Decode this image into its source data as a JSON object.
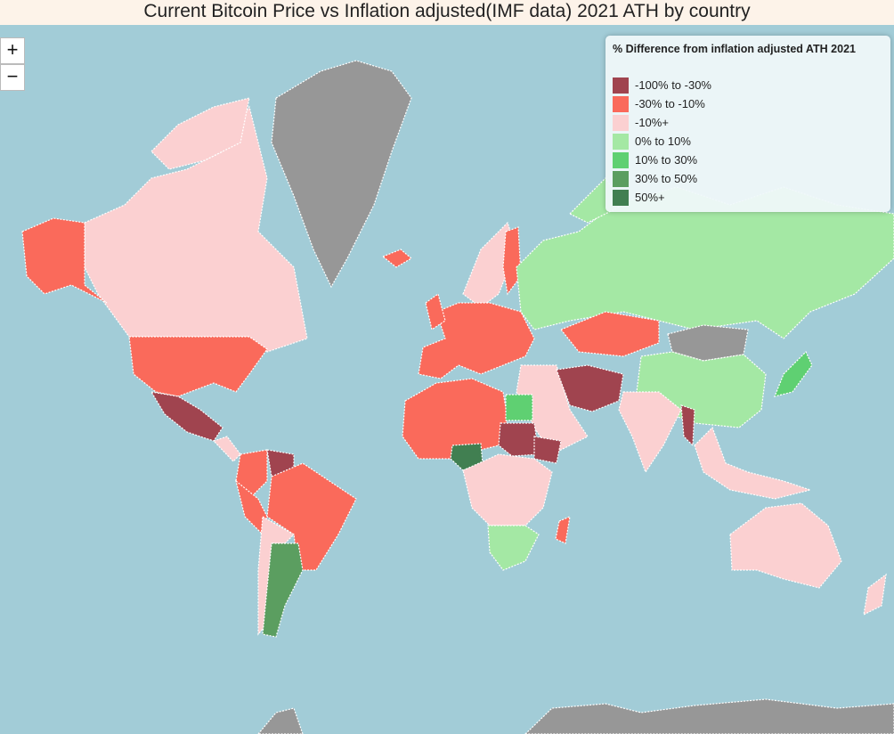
{
  "title": "Current Bitcoin Price vs Inflation adjusted(IMF data) 2021 ATH by country",
  "zoom": {
    "in": "+",
    "out": "−"
  },
  "legend": {
    "title": "% Difference from inflation adjusted ATH 2021",
    "items": [
      {
        "label": "-100% to -30%",
        "color": "#a0444f"
      },
      {
        "label": "-30% to -10%",
        "color": "#fa6a5b"
      },
      {
        "label": "-10%+",
        "color": "#fbd0d1"
      },
      {
        "label": "0% to 10%",
        "color": "#a4e8a4"
      },
      {
        "label": "10% to 30%",
        "color": "#5fd072"
      },
      {
        "label": "30% to 50%",
        "color": "#5b9e60"
      },
      {
        "label": "50%+",
        "color": "#417f51"
      }
    ]
  }
}
